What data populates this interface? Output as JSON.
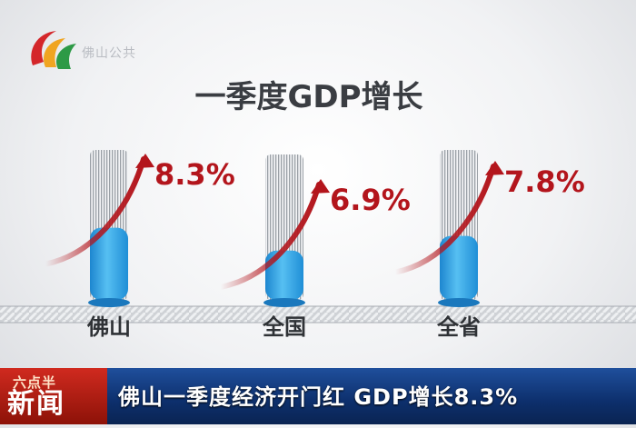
{
  "channel": {
    "logo_name": "guangdong-tv-logo-icon",
    "logo_text": "佛山公共",
    "news_tag_top": "六点半",
    "news_tag_main": "新闻"
  },
  "headline": "佛山一季度经济开门红 GDP增长8.3%",
  "colors": {
    "bar_fill": "#3aa9e8",
    "arrow": "#b3151c",
    "value_text": "#b3151c",
    "banner": "#123a7c",
    "news_tag": "#c0261b"
  },
  "chart_data": {
    "type": "bar",
    "title": "一季度GDP增长",
    "categories": [
      "佛山",
      "全国",
      "全省"
    ],
    "values": [
      8.3,
      6.9,
      7.8
    ],
    "value_labels": [
      "8.3%",
      "6.9%",
      "7.8%"
    ],
    "unit": "%",
    "ylim": [
      0,
      10
    ],
    "grid": false,
    "legend": "none"
  }
}
